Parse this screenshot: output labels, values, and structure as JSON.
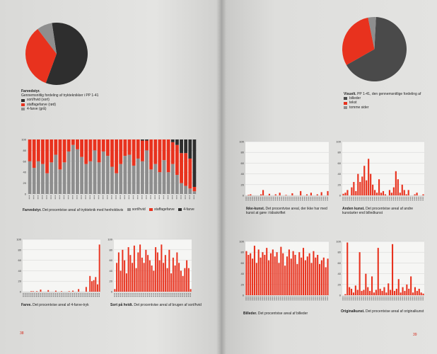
{
  "colors": {
    "black": "#2e2e2e",
    "red": "#e8321e",
    "grey": "#8e8e8e",
    "darkgrey": "#5a5a5a"
  },
  "pages": {
    "left_number": "38",
    "right_number": "39"
  },
  "chart_data": [
    {
      "id": "pie_left",
      "type": "pie",
      "slices": [
        {
          "label": "sort/hvid (sort)",
          "value": 58,
          "color": "#2e2e2e"
        },
        {
          "label": "staffagefarve (rød)",
          "value": 34,
          "color": "#e8321e"
        },
        {
          "label": "4-farve (grå)",
          "value": 8,
          "color": "#8e8e8e"
        }
      ],
      "caption_title": "Farvedstyr.",
      "caption_sub": "Gennemsnitlig fordeling af trykteknikker i PP 1-41"
    },
    {
      "id": "pie_right",
      "type": "pie",
      "slices": [
        {
          "label": "billeder",
          "value": 66,
          "color": "#4a4a4a"
        },
        {
          "label": "tekst",
          "value": 30,
          "color": "#e8321e"
        },
        {
          "label": "tomme sider",
          "value": 4,
          "color": "#8e8e8e"
        }
      ],
      "caption_title": "Visuelt.",
      "caption_sub": "PP 1-41, den gennemsnitlige fordeling af"
    },
    {
      "id": "stacked",
      "type": "bar",
      "stacked": true,
      "ylim": [
        0,
        100
      ],
      "yticks": [
        0,
        20,
        40,
        60,
        80,
        100
      ],
      "series": [
        {
          "name": "sort/hvid",
          "color": "#8e8e8e",
          "values": [
            60,
            48,
            60,
            55,
            38,
            58,
            72,
            45,
            58,
            78,
            90,
            82,
            68,
            55,
            60,
            80,
            58,
            78,
            70,
            50,
            38,
            55,
            70,
            72,
            52,
            65,
            60,
            80,
            45,
            55,
            40,
            62,
            40,
            55,
            35,
            20,
            15,
            10,
            5
          ]
        },
        {
          "name": "staffagefarve",
          "color": "#e8321e",
          "values": [
            40,
            52,
            40,
            45,
            62,
            42,
            28,
            55,
            42,
            22,
            10,
            18,
            32,
            45,
            40,
            20,
            42,
            22,
            30,
            50,
            62,
            45,
            30,
            28,
            48,
            35,
            38,
            18,
            55,
            45,
            60,
            38,
            60,
            40,
            55,
            55,
            60,
            55,
            8
          ]
        },
        {
          "name": "4-farve",
          "color": "#2e2e2e",
          "values": [
            0,
            0,
            0,
            0,
            0,
            0,
            0,
            0,
            0,
            0,
            0,
            0,
            0,
            0,
            0,
            0,
            0,
            0,
            0,
            0,
            0,
            0,
            0,
            0,
            0,
            0,
            2,
            2,
            0,
            0,
            0,
            0,
            0,
            5,
            10,
            25,
            25,
            35,
            87
          ]
        }
      ],
      "caption_title": "Farvedstyr.",
      "caption_sub": "Det procentvise areal af trykteknik med henholdsvis"
    },
    {
      "id": "fire",
      "type": "bar",
      "ylim": [
        0,
        100
      ],
      "yticks": [
        0,
        20,
        40,
        60,
        80,
        100
      ],
      "values": [
        0,
        0,
        0,
        0,
        1,
        1,
        0,
        1,
        0,
        4,
        0,
        0,
        0,
        3,
        0,
        0,
        0,
        2,
        0,
        0,
        1,
        0,
        0,
        0,
        1,
        0,
        2,
        0,
        0,
        5,
        0,
        0,
        0,
        9,
        0,
        30,
        20,
        22,
        28,
        14,
        90
      ],
      "caption_title": "Farve.",
      "caption_sub": "Det procentvise areal af 4-farve-tryk"
    },
    {
      "id": "sort",
      "type": "bar",
      "ylim": [
        0,
        100
      ],
      "yticks": [
        0,
        20,
        40,
        60,
        80,
        100
      ],
      "values": [
        5,
        55,
        75,
        40,
        80,
        60,
        35,
        85,
        70,
        55,
        88,
        45,
        75,
        90,
        65,
        55,
        80,
        70,
        60,
        50,
        40,
        85,
        75,
        60,
        90,
        55,
        70,
        45,
        80,
        35,
        65,
        50,
        75,
        55,
        40,
        30,
        45,
        60,
        45,
        5
      ],
      "caption_title": "Sort på hvidt.",
      "caption_sub": "Det procentvise areal af brugen af sort/hvid"
    },
    {
      "id": "ikke",
      "type": "bar",
      "ylim": [
        0,
        100
      ],
      "yticks": [
        0,
        20,
        40,
        60,
        80,
        100
      ],
      "values": [
        0,
        1,
        2,
        0,
        0,
        0,
        0,
        2,
        10,
        0,
        0,
        3,
        0,
        0,
        2,
        0,
        5,
        0,
        0,
        1,
        0,
        0,
        4,
        0,
        0,
        0,
        8,
        0,
        0,
        2,
        0,
        5,
        0,
        0,
        2,
        0,
        6,
        0,
        0,
        8
      ],
      "caption_title": "Ikke-kunst.",
      "caption_sub": "Det procentvise areal, der ikke har med kunst at gøre i tidsskriftet"
    },
    {
      "id": "anden",
      "type": "bar",
      "ylim": [
        0,
        100
      ],
      "yticks": [
        0,
        20,
        40,
        60,
        80,
        100
      ],
      "values": [
        3,
        5,
        10,
        0,
        15,
        25,
        8,
        40,
        25,
        35,
        55,
        28,
        68,
        40,
        20,
        10,
        5,
        30,
        5,
        8,
        2,
        0,
        10,
        5,
        15,
        45,
        30,
        5,
        20,
        10,
        2,
        10,
        0,
        0,
        2,
        5,
        0,
        0,
        2
      ],
      "caption_title": "Anden kunst.",
      "caption_sub": "Det procentvise areal af andre kunstarter end billedkunst"
    },
    {
      "id": "billeder",
      "type": "bar",
      "ylim": [
        0,
        100
      ],
      "yticks": [
        0,
        20,
        40,
        60,
        80,
        100
      ],
      "values": [
        82,
        75,
        78,
        68,
        92,
        60,
        85,
        70,
        80,
        75,
        88,
        65,
        78,
        85,
        72,
        80,
        60,
        90,
        78,
        55,
        72,
        85,
        68,
        82,
        75,
        58,
        80,
        70,
        88,
        65,
        72,
        78,
        60,
        82,
        70,
        75,
        58,
        65,
        70,
        52,
        68
      ],
      "caption_title": "Billeder.",
      "caption_sub": "Det procentvise areal af billeder"
    },
    {
      "id": "original",
      "type": "bar",
      "ylim": [
        0,
        100
      ],
      "yticks": [
        0,
        20,
        40,
        60,
        80,
        100
      ],
      "values": [
        0,
        2,
        98,
        15,
        12,
        5,
        18,
        10,
        80,
        8,
        10,
        40,
        15,
        8,
        35,
        5,
        10,
        88,
        12,
        8,
        15,
        5,
        22,
        10,
        95,
        8,
        12,
        30,
        5,
        15,
        8,
        20,
        12,
        35,
        5,
        15,
        8,
        12,
        5,
        3
      ],
      "caption_title": "Originalkunst.",
      "caption_sub": "Det procentvise areal af originalkunst"
    }
  ],
  "legends": {
    "pie_left": [
      "sort/hvid (sort)",
      "staffagefarve (rød)",
      "4-farve (grå)"
    ],
    "pie_right": [
      "billeder",
      "tekst",
      "tomme sider"
    ],
    "stacked": [
      "sort/hvid",
      "staffagefarve",
      "4-farve"
    ]
  }
}
